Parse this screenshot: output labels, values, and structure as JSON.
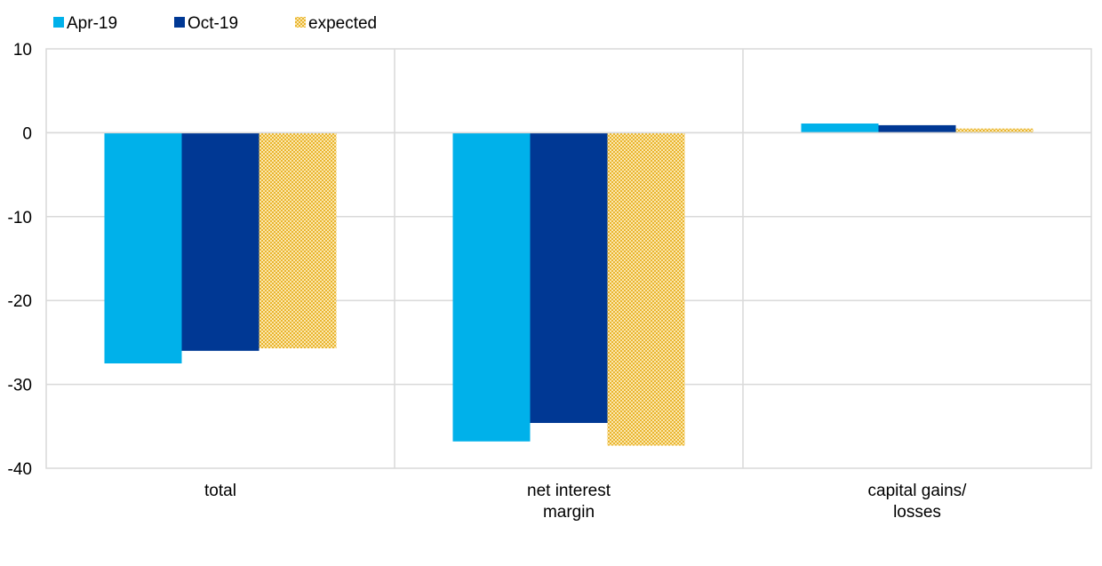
{
  "chart_data": {
    "type": "bar",
    "categories": [
      [
        "total"
      ],
      [
        "net interest",
        "margin"
      ],
      [
        "capital gains/",
        "losses"
      ]
    ],
    "series": [
      {
        "name": "Apr-19",
        "values": [
          -27.5,
          -36.8,
          1.1
        ],
        "color": "#00b1ea",
        "pattern": "solid"
      },
      {
        "name": "Oct-19",
        "values": [
          -26.0,
          -34.6,
          0.9
        ],
        "color": "#003894",
        "pattern": "solid"
      },
      {
        "name": "expected",
        "values": [
          -25.7,
          -37.3,
          0.5
        ],
        "color": "#f5c647",
        "pattern": "dotted"
      }
    ],
    "ylim": [
      -40,
      10
    ],
    "yticks": [
      10,
      0,
      -10,
      -20,
      -30,
      -40
    ],
    "grid": true,
    "legend_position": "top-left",
    "title": "",
    "xlabel": "",
    "ylabel": ""
  }
}
